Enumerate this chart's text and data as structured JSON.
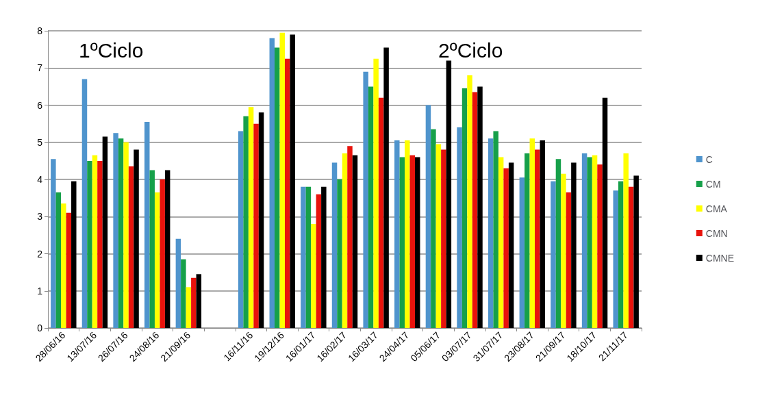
{
  "chart_data": {
    "type": "bar",
    "categories": [
      "28/06/16",
      "13/07/16",
      "26/07/16",
      "24/08/16",
      "21/09/16",
      null,
      "16/11/16",
      "19/12/16",
      "16/01/17",
      "16/02/17",
      "16/03/17",
      "24/04/17",
      "05/06/17",
      "03/07/17",
      "31/07/17",
      "23/08/17",
      "21/09/17",
      "18/10/17",
      "21/11/17"
    ],
    "series": [
      {
        "name": "C",
        "color": "#4f94cd",
        "values": [
          4.55,
          6.7,
          5.25,
          5.55,
          2.4,
          null,
          5.3,
          7.8,
          3.8,
          4.45,
          6.9,
          5.05,
          6.0,
          5.4,
          5.1,
          4.05,
          3.95,
          4.7,
          3.7
        ]
      },
      {
        "name": "CM",
        "color": "#16a04a",
        "values": [
          3.65,
          4.5,
          5.1,
          4.25,
          1.85,
          null,
          5.7,
          7.55,
          3.8,
          4.0,
          6.5,
          4.6,
          5.35,
          6.45,
          5.3,
          4.7,
          4.55,
          4.6,
          3.95
        ]
      },
      {
        "name": "CMA",
        "color": "#ffff00",
        "values": [
          3.35,
          4.65,
          5.0,
          3.65,
          1.1,
          null,
          5.95,
          7.95,
          2.8,
          4.7,
          7.25,
          5.05,
          4.95,
          6.8,
          4.6,
          5.1,
          4.15,
          4.65,
          4.7
        ]
      },
      {
        "name": "CMN",
        "color": "#e8130c",
        "values": [
          3.1,
          4.5,
          4.35,
          4.0,
          1.35,
          null,
          5.5,
          7.25,
          3.6,
          4.9,
          6.2,
          4.65,
          4.8,
          6.35,
          4.3,
          4.8,
          3.65,
          4.4,
          3.8
        ]
      },
      {
        "name": "CMNE",
        "color": "#000000",
        "values": [
          3.95,
          5.15,
          4.8,
          4.25,
          1.45,
          null,
          5.8,
          7.9,
          3.8,
          4.65,
          7.55,
          4.6,
          7.2,
          6.5,
          4.45,
          5.05,
          4.45,
          6.2,
          4.1
        ]
      }
    ],
    "annotations": [
      "1ºCiclo",
      "2ºCiclo"
    ],
    "ylim": [
      0,
      8
    ],
    "yticks": [
      0,
      1,
      2,
      3,
      4,
      5,
      6,
      7,
      8
    ],
    "grid": "y",
    "legend": "right"
  }
}
